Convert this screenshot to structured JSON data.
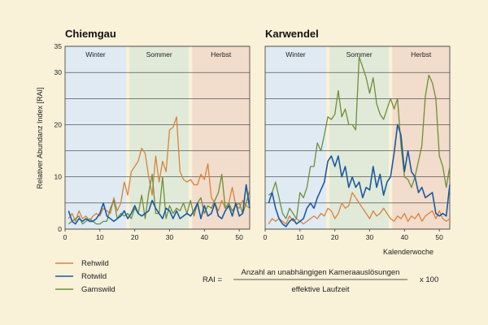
{
  "colors": {
    "background": "#f9f1d8",
    "winter": "#dfeaf3",
    "sommer": "#e1ead9",
    "herbst": "#f2dccb",
    "grid": "#3a3a3a",
    "rehwild": "#d9823e",
    "rotwild": "#1a5aa0",
    "gamswild": "#6e8f3a"
  },
  "chart_data": [
    {
      "type": "line",
      "title": "Chiemgau",
      "ylabel": "Relativer Abundanz Index [RAI]",
      "xlabel": "",
      "xlim": [
        0,
        53
      ],
      "ylim": [
        0,
        35
      ],
      "xticks": [
        0,
        10,
        20,
        30,
        40,
        50
      ],
      "yticks": [
        0,
        10,
        20,
        30,
        35
      ],
      "seasons": [
        {
          "name": "Winter",
          "from": 0,
          "to": 17.5
        },
        {
          "name": "Sommer",
          "from": 18.5,
          "to": 35.5
        },
        {
          "name": "Herbst",
          "from": 36.5,
          "to": 53
        }
      ],
      "x": [
        1,
        2,
        3,
        4,
        5,
        6,
        7,
        8,
        9,
        10,
        11,
        12,
        13,
        14,
        15,
        16,
        17,
        18,
        19,
        20,
        21,
        22,
        23,
        24,
        25,
        26,
        27,
        28,
        29,
        30,
        31,
        32,
        33,
        34,
        35,
        36,
        37,
        38,
        39,
        40,
        41,
        42,
        43,
        44,
        45,
        46,
        47,
        48,
        49,
        50,
        51,
        52,
        53
      ],
      "series": [
        {
          "name": "Rehwild",
          "values": [
            2,
            3,
            1.5,
            3.5,
            2,
            2.5,
            1.5,
            2.5,
            3,
            2.5,
            4,
            3.5,
            3,
            6,
            3.5,
            5,
            9,
            6.5,
            11,
            12,
            13,
            15.5,
            14.5,
            10,
            6.5,
            14,
            9,
            13,
            11,
            19,
            19.5,
            21.5,
            11,
            9.5,
            9,
            9.5,
            8.5,
            8.5,
            10.5,
            9.5,
            12.5,
            6,
            5,
            3.5,
            5.5,
            4,
            5,
            8,
            4.5,
            4,
            5.5,
            4.5,
            4
          ]
        },
        {
          "name": "Rotwild",
          "values": [
            3.5,
            1.5,
            1,
            2,
            1.5,
            2,
            1.5,
            1.5,
            2,
            3,
            5,
            2.5,
            2,
            1.5,
            2,
            2.5,
            3.5,
            2,
            3,
            4.5,
            3,
            2.5,
            3,
            3.5,
            5.5,
            4,
            3,
            2,
            4,
            3.5,
            2,
            3.5,
            2,
            2.5,
            3,
            2.5,
            3.5,
            5,
            2,
            4.5,
            2.5,
            3,
            5,
            2.5,
            2,
            3.5,
            4.5,
            2.5,
            5,
            2.5,
            3,
            8.5,
            4
          ]
        },
        {
          "name": "Gamswild",
          "values": [
            1,
            1.5,
            2,
            2.5,
            1,
            1.5,
            2,
            1.5,
            1,
            1,
            1.5,
            1.5,
            4,
            5.5,
            2,
            3,
            2.5,
            3,
            2,
            4,
            3,
            6.5,
            2,
            7,
            10.5,
            3,
            3,
            10,
            2,
            4.5,
            3,
            4,
            3.5,
            5,
            3,
            5.5,
            2.5,
            5,
            6,
            3,
            4.5,
            4,
            5.5,
            7,
            10.5,
            4,
            5,
            3.5,
            4.5,
            5,
            3,
            5,
            7.5
          ]
        }
      ]
    },
    {
      "type": "line",
      "title": "Karwendel",
      "xlabel": "Kalenderwoche",
      "xlim": [
        0,
        53
      ],
      "ylim": [
        0,
        35
      ],
      "xticks": [
        0,
        10,
        20,
        30,
        40,
        50
      ],
      "seasons": [
        {
          "name": "Winter",
          "from": 0,
          "to": 17.5
        },
        {
          "name": "Sommer",
          "from": 18.5,
          "to": 35.5
        },
        {
          "name": "Herbst",
          "from": 36.5,
          "to": 53
        }
      ],
      "x": [
        1,
        2,
        3,
        4,
        5,
        6,
        7,
        8,
        9,
        10,
        11,
        12,
        13,
        14,
        15,
        16,
        17,
        18,
        19,
        20,
        21,
        22,
        23,
        24,
        25,
        26,
        27,
        28,
        29,
        30,
        31,
        32,
        33,
        34,
        35,
        36,
        37,
        38,
        39,
        40,
        41,
        42,
        43,
        44,
        45,
        46,
        47,
        48,
        49,
        50,
        51,
        52,
        53
      ],
      "series": [
        {
          "name": "Rehwild",
          "values": [
            1,
            2,
            1.5,
            2,
            1.5,
            1,
            2.5,
            1.5,
            2,
            1.5,
            1,
            1.5,
            2,
            2.5,
            2,
            3,
            2.5,
            4,
            3.5,
            2,
            3,
            5,
            4,
            4.5,
            7,
            6,
            5,
            4,
            3,
            2,
            3.5,
            2.5,
            3,
            4,
            3,
            2,
            1.5,
            2.5,
            2,
            3,
            1.5,
            2.5,
            2,
            3,
            1.5,
            2.5,
            3,
            3.5,
            2,
            3.5,
            2,
            1.5,
            2
          ]
        },
        {
          "name": "Rotwild",
          "values": [
            5,
            7,
            4,
            2,
            1,
            0.5,
            1.5,
            2,
            1,
            1.5,
            2,
            4,
            5,
            4,
            6,
            7.5,
            9,
            13,
            14,
            12,
            14,
            10,
            12,
            8,
            10,
            8,
            9,
            6,
            8,
            7.5,
            12,
            8,
            10.5,
            6.5,
            9,
            10,
            14.5,
            20,
            18,
            11,
            15,
            11,
            10,
            7,
            8,
            6,
            6.5,
            7,
            3,
            2.5,
            3,
            2.5,
            8.5
          ]
        },
        {
          "name": "Gamswild",
          "values": [
            6.5,
            7,
            9,
            6,
            3,
            2,
            4,
            3,
            2,
            7,
            6,
            8,
            12,
            12,
            16.5,
            15,
            18,
            21.5,
            21,
            22,
            26.5,
            21.5,
            23,
            20,
            20,
            19,
            33,
            31,
            29,
            26,
            29,
            24,
            22,
            21,
            23,
            25,
            23,
            25,
            16,
            10,
            9.5,
            8,
            10,
            13,
            16,
            25.5,
            29.5,
            28,
            25,
            14,
            12,
            8,
            12
          ]
        }
      ]
    }
  ],
  "legend": [
    {
      "name": "Rehwild"
    },
    {
      "name": "Rotwild"
    },
    {
      "name": "Gamswild"
    }
  ],
  "formula": {
    "lhs": "RAI =",
    "numerator": "Anzahl an unabhängigen Kameraauslösungen",
    "denominator": "effektive Laufzeit",
    "factor": "x 100"
  }
}
